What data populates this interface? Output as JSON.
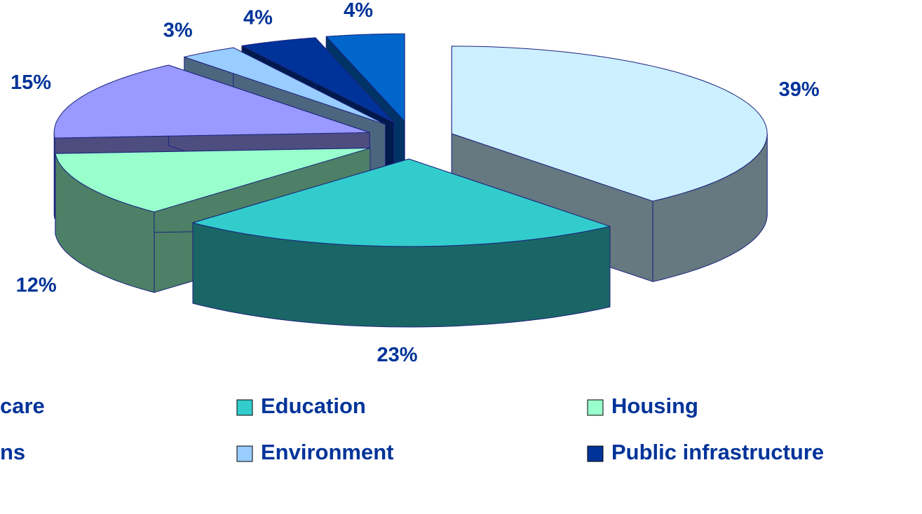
{
  "chart_data": {
    "type": "pie3d",
    "categories": [
      "care",
      "Education",
      "Housing",
      "ns",
      "Environment",
      "Public infrastructure",
      null
    ],
    "values": [
      39,
      23,
      12,
      15,
      3,
      4,
      4
    ],
    "value_labels": [
      "39%",
      "23%",
      "12%",
      "15%",
      "3%",
      "4%",
      "4%"
    ],
    "colors": [
      "#ccf0ff",
      "#33cccc",
      "#99ffcc",
      "#9999ff",
      "#99ccff",
      "#003399",
      "#0066cc"
    ],
    "legend": "bottom"
  }
}
